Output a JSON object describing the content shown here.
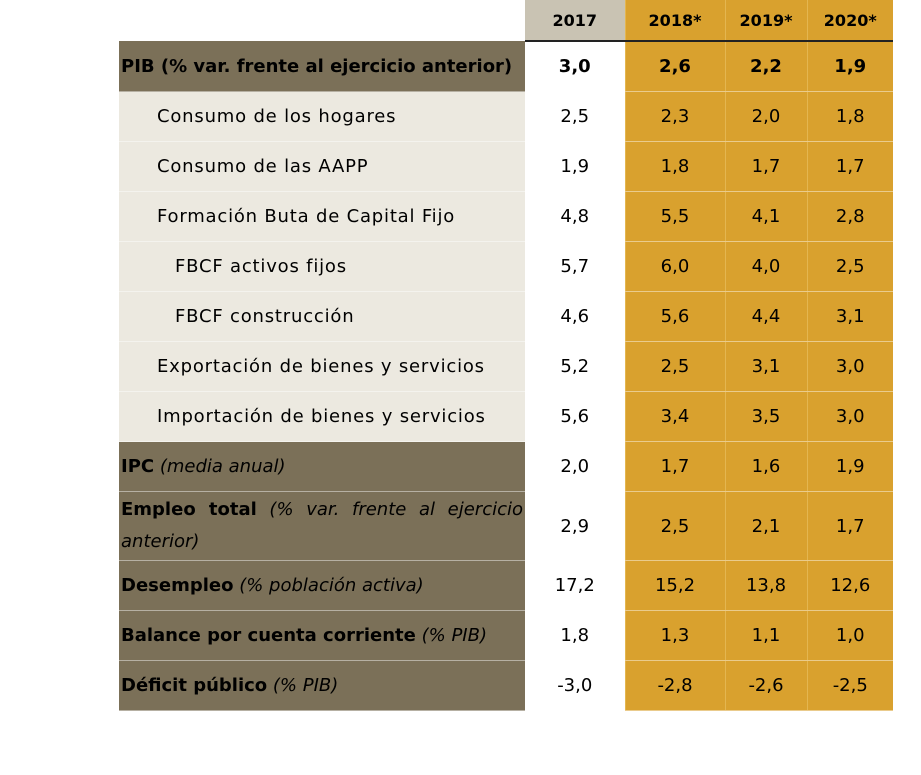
{
  "headers": [
    "2017",
    "2018*",
    "2019*",
    "2020*"
  ],
  "rows": [
    {
      "label": "PIB (% var. frente al ejercicio anterior)",
      "values": [
        "3,0",
        "2,6",
        "2,2",
        "1,9"
      ]
    },
    {
      "label": "Consumo de los hogares",
      "values": [
        "2,5",
        "2,3",
        "2,0",
        "1,8"
      ]
    },
    {
      "label": "Consumo de las AAPP",
      "values": [
        "1,9",
        "1,8",
        "1,7",
        "1,7"
      ]
    },
    {
      "label": "Formación Buta de Capital Fijo",
      "values": [
        "4,8",
        "5,5",
        "4,1",
        "2,8"
      ]
    },
    {
      "label": "FBCF activos fijos",
      "values": [
        "5,7",
        "6,0",
        "4,0",
        "2,5"
      ]
    },
    {
      "label": "FBCF construcción",
      "values": [
        "4,6",
        "5,6",
        "4,4",
        "3,1"
      ]
    },
    {
      "label": "Exportación de bienes y servicios",
      "values": [
        "5,2",
        "2,5",
        "3,1",
        "3,0"
      ]
    },
    {
      "label": "Importación de bienes y servicios",
      "values": [
        "5,6",
        "3,4",
        "3,5",
        "3,0"
      ]
    },
    {
      "label_bold": "IPC",
      "label_italic": "(media anual)",
      "values": [
        "2,0",
        "1,7",
        "1,6",
        "1,9"
      ]
    },
    {
      "label_bold": "Empleo total",
      "label_italic": "(% var. frente al ejercicio anterior)",
      "values": [
        "2,9",
        "2,5",
        "2,1",
        "1,7"
      ]
    },
    {
      "label_bold": "Desempleo",
      "label_italic": "(% población activa)",
      "values": [
        "17,2",
        "15,2",
        "13,8",
        "12,6"
      ]
    },
    {
      "label_bold": "Balance por cuenta corriente",
      "label_italic": "(% PIB)",
      "values": [
        "1,8",
        "1,3",
        "1,1",
        "1,0"
      ]
    },
    {
      "label_bold": "Déficit público",
      "label_italic": "(% PIB)",
      "values": [
        "-3,0",
        "-2,8",
        "-2,6",
        "-2,5"
      ]
    }
  ]
}
